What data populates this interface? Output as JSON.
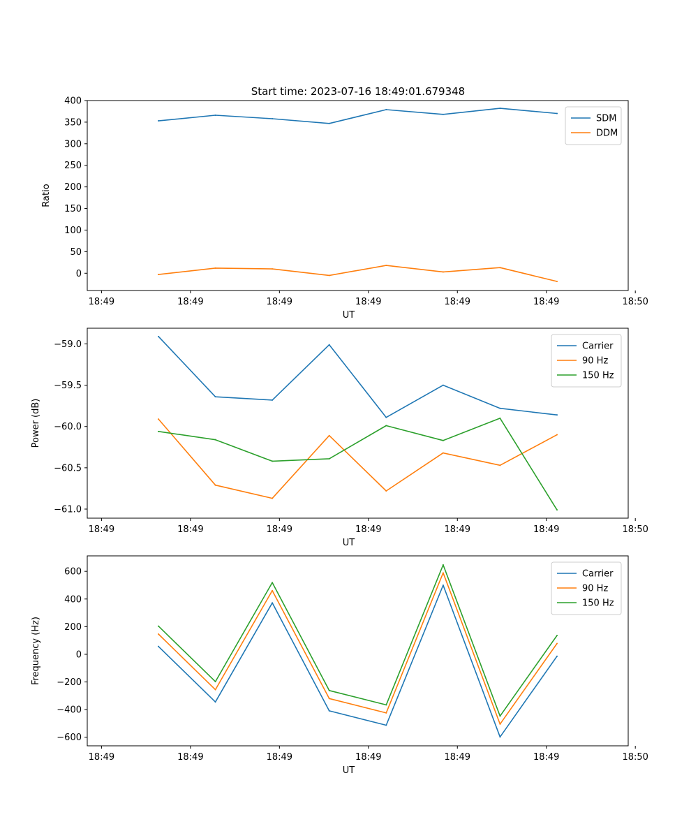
{
  "figure": {
    "title": "Start time: 2023-07-16 18:49:01.679348"
  },
  "colors": {
    "blue": "#1f77b4",
    "orange": "#ff7f0e",
    "green": "#2ca02c",
    "axis": "#000000",
    "background": "#ffffff"
  },
  "chart_data": [
    {
      "type": "line",
      "name": "ratio-panel",
      "xlabel": "UT",
      "ylabel": "Ratio",
      "x": [
        0.8,
        1.6,
        2.4,
        3.2,
        4.0,
        4.8,
        5.6,
        6.4
      ],
      "xlim": [
        -0.2,
        7.4
      ],
      "x_ticks": [
        0,
        1.25,
        2.5,
        3.75,
        5.0,
        6.25,
        7.5
      ],
      "x_tick_labels": [
        "18:49",
        "18:49",
        "18:49",
        "18:49",
        "18:49",
        "18:49",
        "18:50"
      ],
      "ylim": [
        -40,
        400
      ],
      "y_ticks": [
        0,
        50,
        100,
        150,
        200,
        250,
        300,
        350,
        400
      ],
      "y_tick_labels": [
        "0",
        "50",
        "100",
        "150",
        "200",
        "250",
        "300",
        "350",
        "400"
      ],
      "legend_position": "top-right",
      "series": [
        {
          "name": "SDM",
          "color": "#1f77b4",
          "values": [
            353,
            366,
            358,
            347,
            379,
            368,
            382,
            370
          ]
        },
        {
          "name": "DDM",
          "color": "#ff7f0e",
          "values": [
            -3,
            12,
            10,
            -5,
            18,
            3,
            13,
            -19
          ]
        }
      ]
    },
    {
      "type": "line",
      "name": "power-panel",
      "xlabel": "UT",
      "ylabel": "Power (dB)",
      "x": [
        0.8,
        1.6,
        2.4,
        3.2,
        4.0,
        4.8,
        5.6,
        6.4
      ],
      "xlim": [
        -0.2,
        7.4
      ],
      "x_ticks": [
        0,
        1.25,
        2.5,
        3.75,
        5.0,
        6.25,
        7.5
      ],
      "x_tick_labels": [
        "18:49",
        "18:49",
        "18:49",
        "18:49",
        "18:49",
        "18:49",
        "18:50"
      ],
      "ylim": [
        -61.11,
        -58.81
      ],
      "y_ticks": [
        -61.0,
        -60.5,
        -60.0,
        -59.5,
        -59.0
      ],
      "y_tick_labels": [
        "−61.0",
        "−60.5",
        "−60.0",
        "−59.5",
        "−59.0"
      ],
      "legend_position": "top-right",
      "series": [
        {
          "name": "Carrier",
          "color": "#1f77b4",
          "values": [
            -58.91,
            -59.64,
            -59.68,
            -59.01,
            -59.89,
            -59.5,
            -59.78,
            -59.86
          ]
        },
        {
          "name": "90 Hz",
          "color": "#ff7f0e",
          "values": [
            -59.91,
            -60.71,
            -60.87,
            -60.11,
            -60.78,
            -60.32,
            -60.47,
            -60.1
          ]
        },
        {
          "name": "150 Hz",
          "color": "#2ca02c",
          "values": [
            -60.06,
            -60.16,
            -60.42,
            -60.39,
            -59.99,
            -60.17,
            -59.9,
            -61.01
          ]
        }
      ]
    },
    {
      "type": "line",
      "name": "frequency-panel",
      "xlabel": "UT",
      "ylabel": "Frequency (Hz)",
      "x": [
        0.8,
        1.6,
        2.4,
        3.2,
        4.0,
        4.8,
        5.6,
        6.4
      ],
      "xlim": [
        -0.2,
        7.4
      ],
      "x_ticks": [
        0,
        1.25,
        2.5,
        3.75,
        5.0,
        6.25,
        7.5
      ],
      "x_tick_labels": [
        "18:49",
        "18:49",
        "18:49",
        "18:49",
        "18:49",
        "18:49",
        "18:50"
      ],
      "ylim": [
        -662,
        712
      ],
      "y_ticks": [
        -600,
        -400,
        -200,
        0,
        200,
        400,
        600
      ],
      "y_tick_labels": [
        "−600",
        "−400",
        "−200",
        "0",
        "200",
        "400",
        "600"
      ],
      "legend_position": "top-right",
      "series": [
        {
          "name": "Carrier",
          "color": "#1f77b4",
          "values": [
            57,
            -345,
            372,
            -409,
            -513,
            500,
            -598,
            -14
          ]
        },
        {
          "name": "90 Hz",
          "color": "#ff7f0e",
          "values": [
            146,
            -256,
            461,
            -320,
            -424,
            589,
            -505,
            78
          ]
        },
        {
          "name": "150 Hz",
          "color": "#2ca02c",
          "values": [
            204,
            -198,
            519,
            -262,
            -366,
            647,
            -447,
            136
          ]
        }
      ]
    }
  ]
}
